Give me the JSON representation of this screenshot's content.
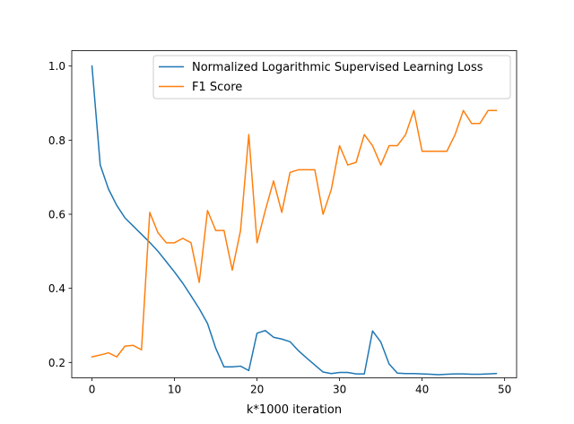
{
  "chart_data": {
    "type": "line",
    "title": "",
    "xlabel": "k*1000 iteration",
    "ylabel": "",
    "xlim": [
      -2.45,
      51.45
    ],
    "ylim": [
      0.1584,
      1.0416
    ],
    "xticks": [
      0,
      10,
      20,
      30,
      40,
      50
    ],
    "yticks": [
      0.2,
      0.4,
      0.6,
      0.8,
      1.0
    ],
    "xtick_labels": [
      "0",
      "10",
      "20",
      "30",
      "40",
      "50"
    ],
    "ytick_labels": [
      "0.2",
      "0.4",
      "0.6",
      "0.8",
      "1.0"
    ],
    "grid": false,
    "legend_position": "top-right",
    "x": [
      0,
      1,
      2,
      3,
      4,
      5,
      6,
      7,
      8,
      9,
      10,
      11,
      12,
      13,
      14,
      15,
      16,
      17,
      18,
      19,
      20,
      21,
      22,
      23,
      24,
      25,
      26,
      27,
      28,
      29,
      30,
      31,
      32,
      33,
      34,
      35,
      36,
      37,
      38,
      39,
      40,
      41,
      42,
      43,
      44,
      45,
      46,
      47,
      48,
      49
    ],
    "series": [
      {
        "name": "Normalized Logarithmic Supervised Learning Loss",
        "color": "#1f77b4",
        "values": [
          1.0,
          0.733,
          0.668,
          0.624,
          0.59,
          0.568,
          0.546,
          0.524,
          0.5,
          0.472,
          0.444,
          0.414,
          0.38,
          0.345,
          0.305,
          0.238,
          0.188,
          0.188,
          0.19,
          0.178,
          0.279,
          0.286,
          0.268,
          0.263,
          0.256,
          0.232,
          0.212,
          0.193,
          0.174,
          0.17,
          0.173,
          0.173,
          0.169,
          0.169,
          0.285,
          0.255,
          0.196,
          0.171,
          0.17,
          0.17,
          0.169,
          0.168,
          0.167,
          0.168,
          0.169,
          0.169,
          0.168,
          0.168,
          0.169,
          0.17
        ]
      },
      {
        "name": "F1 Score",
        "color": "#ff7f0e",
        "values": [
          0.215,
          0.22,
          0.226,
          0.215,
          0.244,
          0.246,
          0.234,
          0.605,
          0.55,
          0.523,
          0.523,
          0.535,
          0.523,
          0.416,
          0.61,
          0.556,
          0.556,
          0.449,
          0.556,
          0.815,
          0.523,
          0.61,
          0.69,
          0.605,
          0.713,
          0.72,
          0.72,
          0.72,
          0.6,
          0.667,
          0.785,
          0.733,
          0.74,
          0.815,
          0.785,
          0.733,
          0.785,
          0.785,
          0.815,
          0.88,
          0.77,
          0.77,
          0.77,
          0.77,
          0.815,
          0.88,
          0.845,
          0.845,
          0.88,
          0.88
        ]
      }
    ]
  }
}
